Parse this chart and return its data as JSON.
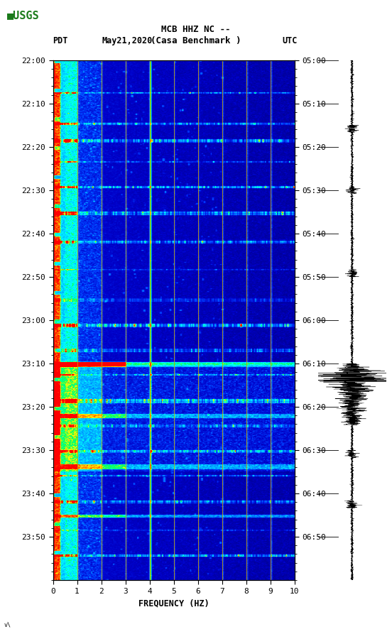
{
  "title_line1": "MCB HHZ NC --",
  "title_line2": "(Casa Benchmark )",
  "left_label": "PDT",
  "date_label": "May21,2020",
  "right_label": "UTC",
  "freq_label": "FREQUENCY (HZ)",
  "left_times": [
    "22:00",
    "22:10",
    "22:20",
    "22:30",
    "22:40",
    "22:50",
    "23:00",
    "23:10",
    "23:20",
    "23:30",
    "23:40",
    "23:50"
  ],
  "right_times": [
    "05:00",
    "05:10",
    "05:20",
    "05:30",
    "05:40",
    "05:50",
    "06:00",
    "06:10",
    "06:20",
    "06:30",
    "06:40",
    "06:50"
  ],
  "freq_ticks": [
    0,
    1,
    2,
    3,
    4,
    5,
    6,
    7,
    8,
    9,
    10
  ],
  "n_time_bins": 720,
  "n_freq_bins": 400,
  "usgs_green": "#1a7a1a",
  "vertical_lines_freq": [
    1.0,
    2.0,
    3.0,
    4.0,
    5.0,
    6.0,
    7.0,
    8.0,
    9.0
  ]
}
